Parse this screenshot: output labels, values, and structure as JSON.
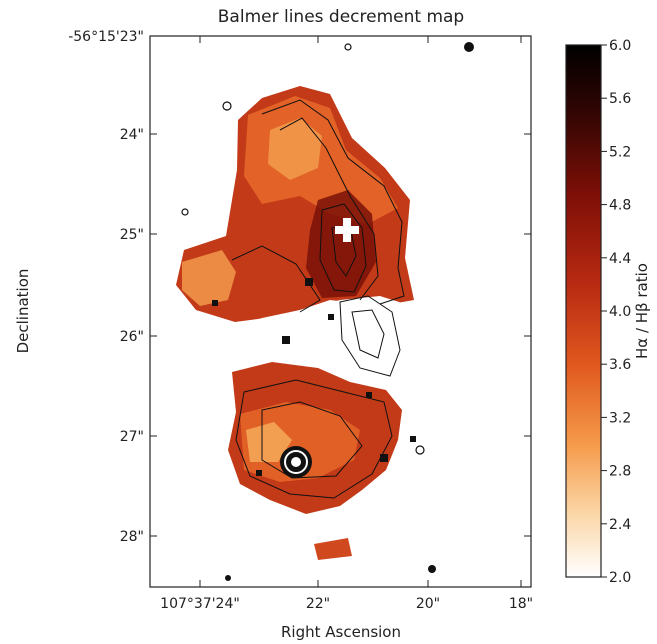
{
  "chart_data": {
    "type": "heatmap",
    "title": "Balmer lines decrement map",
    "xlabel": "Right Ascension",
    "ylabel": "Declination",
    "x_ticks": [
      "107°37'24\"",
      "22\"",
      "20\"",
      "18\""
    ],
    "y_ticks": [
      "-56°15'23\"",
      "24\"",
      "25\"",
      "26\"",
      "27\"",
      "28\""
    ],
    "colorbar": {
      "label": "Hα / Hβ ratio",
      "range": [
        2.0,
        6.0
      ],
      "ticks": [
        "2.0",
        "2.4",
        "2.8",
        "3.2",
        "3.6",
        "4.0",
        "4.4",
        "4.8",
        "5.2",
        "5.6",
        "6.0"
      ]
    },
    "colors": {
      "low": "#ffffff",
      "mid_low": "#f5a040",
      "mid": "#d2401a",
      "mid_high": "#8a1008",
      "high": "#000000"
    },
    "marker": "white cross",
    "contours": "black isophotes overlaid on map"
  }
}
